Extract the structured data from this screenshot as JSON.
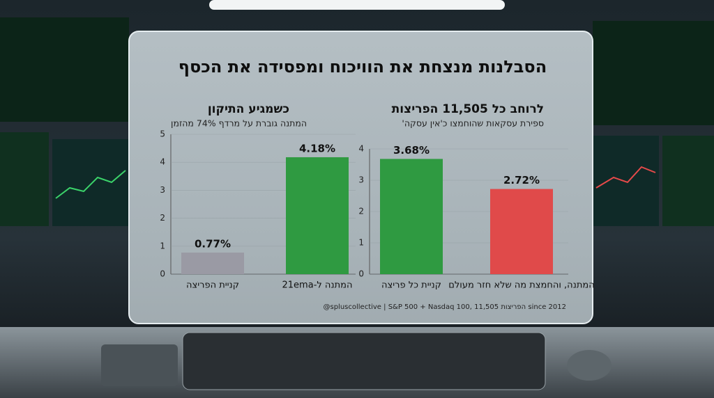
{
  "title": "הסבלנות מנצחת את הוויכוח ומפסידה את הכסף",
  "footer": "@spluscollective | S&P 500 + Nasdaq 100, 11,505 הפריצות since 2012",
  "chart_data": [
    {
      "type": "bar",
      "title": "כשמגיע התיקון",
      "subtitle": "המתנה גוברת על מרדף 74% מהזמן",
      "categories": [
        "קניית הפריצה",
        "המתנה ל-21ema"
      ],
      "values": [
        0.77,
        4.18
      ],
      "value_labels": [
        "0.77%",
        "4.18%"
      ],
      "colors": [
        "#9a9aa4",
        "#2f9a41"
      ],
      "ylim": [
        0,
        5
      ],
      "yticks": [
        0,
        1,
        2,
        3,
        4,
        5
      ],
      "grid": true
    },
    {
      "type": "bar",
      "title": "לרוחב כל 11,505 הפריצות",
      "subtitle": "ספירת עסקאות שהוחמצו כ'אין עסקה'",
      "categories": [
        "קניית כל פריצה",
        "המתנה, והחמצת מה שלא חזר מעולם"
      ],
      "values": [
        3.68,
        2.72
      ],
      "value_labels": [
        "3.68%",
        "2.72%"
      ],
      "colors": [
        "#2f9a41",
        "#e04a4a"
      ],
      "ylim": [
        0,
        4
      ],
      "yticks": [
        0,
        1,
        2,
        3,
        4
      ],
      "grid": true
    }
  ]
}
